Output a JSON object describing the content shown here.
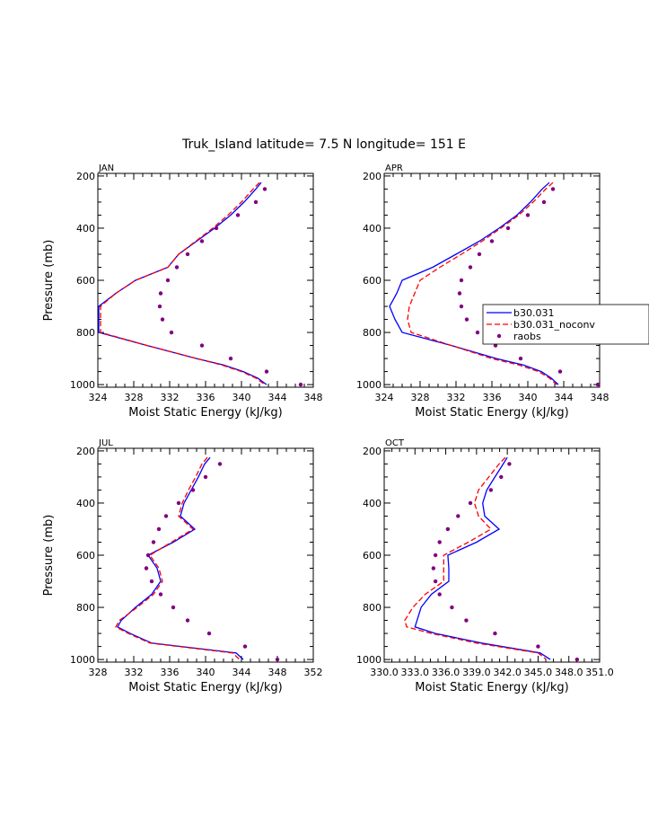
{
  "title": "Truk_Island  latitude= 7.5 N longitude= 151 E",
  "colors": {
    "model": "#0000ff",
    "noconv": "#ff0000",
    "raobs": "#800080"
  },
  "legend": {
    "panel": 1,
    "entries": [
      "b30.031",
      "b30.031_noconv",
      "raobs"
    ]
  },
  "chart_data": [
    {
      "type": "line",
      "label": "JAN",
      "xlabel": "Moist Static Energy (kJ/kg)",
      "ylabel": "Pressure (mb)",
      "xlim": [
        324,
        348
      ],
      "xticks": [
        324,
        328,
        332,
        336,
        340,
        344,
        348
      ],
      "xtick_labels": [
        "324",
        "328",
        "332",
        "336",
        "340",
        "344",
        "348"
      ],
      "ylim": [
        1010,
        190
      ],
      "yticks": [
        200,
        400,
        600,
        800,
        1000
      ],
      "ytick_labels": [
        "200",
        "400",
        "600",
        "800",
        "1000"
      ],
      "pressure": [
        225,
        250,
        300,
        350,
        400,
        450,
        500,
        550,
        600,
        650,
        700,
        750,
        800,
        850,
        900,
        925,
        950,
        975,
        1000
      ],
      "series": [
        {
          "name": "b30.031",
          "style": "solid",
          "values": [
            342.2,
            341.6,
            340.3,
            338.8,
            337.0,
            335.0,
            333.0,
            331.8,
            328.2,
            326.0,
            324.1,
            324.1,
            324.1,
            329.5,
            335.0,
            338.0,
            340.2,
            341.8,
            342.8
          ]
        },
        {
          "name": "b30.031_noconv",
          "style": "dashed",
          "values": [
            342.0,
            341.3,
            340.0,
            338.5,
            336.8,
            334.9,
            333.0,
            331.8,
            328.2,
            326.0,
            324.3,
            324.3,
            324.3,
            329.5,
            335.0,
            337.8,
            340.0,
            341.6,
            342.6
          ]
        },
        {
          "name": "raobs",
          "style": "dots",
          "points": [
            [
              342.6,
              250
            ],
            [
              341.6,
              300
            ],
            [
              339.6,
              350
            ],
            [
              337.2,
              400
            ],
            [
              335.6,
              450
            ],
            [
              334.0,
              500
            ],
            [
              332.8,
              550
            ],
            [
              331.8,
              600
            ],
            [
              331.0,
              650
            ],
            [
              330.9,
              700
            ],
            [
              331.2,
              750
            ],
            [
              332.2,
              800
            ],
            [
              335.6,
              850
            ],
            [
              338.8,
              900
            ],
            [
              342.8,
              950
            ],
            [
              346.6,
              1000
            ]
          ]
        }
      ]
    },
    {
      "type": "line",
      "label": "APR",
      "xlabel": "Moist Static Energy (kJ/kg)",
      "ylabel": "",
      "xlim": [
        324,
        348
      ],
      "xticks": [
        324,
        328,
        332,
        336,
        340,
        344,
        348
      ],
      "xtick_labels": [
        "324",
        "328",
        "332",
        "336",
        "340",
        "344",
        "348"
      ],
      "ylim": [
        1010,
        190
      ],
      "yticks": [
        200,
        400,
        600,
        800,
        1000
      ],
      "ytick_labels": [
        "200",
        "400",
        "600",
        "800",
        "1000"
      ],
      "pressure": [
        225,
        250,
        300,
        350,
        400,
        450,
        500,
        550,
        600,
        650,
        700,
        750,
        800,
        850,
        900,
        925,
        950,
        975,
        1000
      ],
      "series": [
        {
          "name": "b30.031",
          "style": "solid",
          "values": [
            342.4,
            341.6,
            340.3,
            338.8,
            336.8,
            334.6,
            332.0,
            329.4,
            326.0,
            325.4,
            324.6,
            325.2,
            326.0,
            331.5,
            336.5,
            339.5,
            341.5,
            342.6,
            343.4
          ]
        },
        {
          "name": "b30.031_noconv",
          "style": "dashed",
          "values": [
            342.8,
            342.0,
            340.6,
            339.0,
            337.0,
            334.9,
            332.6,
            330.2,
            328.0,
            327.4,
            326.8,
            326.6,
            327.0,
            331.5,
            336.0,
            339.0,
            341.2,
            342.4,
            343.2
          ]
        },
        {
          "name": "raobs",
          "style": "dots",
          "points": [
            [
              342.8,
              250
            ],
            [
              341.8,
              300
            ],
            [
              340.0,
              350
            ],
            [
              337.8,
              400
            ],
            [
              336.0,
              450
            ],
            [
              334.6,
              500
            ],
            [
              333.6,
              550
            ],
            [
              332.6,
              600
            ],
            [
              332.4,
              650
            ],
            [
              332.6,
              700
            ],
            [
              333.2,
              750
            ],
            [
              334.4,
              800
            ],
            [
              336.4,
              850
            ],
            [
              339.2,
              900
            ],
            [
              343.6,
              950
            ],
            [
              347.8,
              1000
            ]
          ]
        }
      ]
    },
    {
      "type": "line",
      "label": "JUL",
      "xlabel": "Moist Static Energy (kJ/kg)",
      "ylabel": "Pressure (mb)",
      "xlim": [
        328,
        352
      ],
      "xticks": [
        328,
        332,
        336,
        340,
        344,
        348,
        352
      ],
      "xtick_labels": [
        "328",
        "332",
        "336",
        "340",
        "344",
        "348",
        "352"
      ],
      "ylim": [
        1010,
        190
      ],
      "yticks": [
        200,
        400,
        600,
        800,
        1000
      ],
      "ytick_labels": [
        "200",
        "400",
        "600",
        "800",
        "1000"
      ],
      "pressure": [
        225,
        250,
        300,
        350,
        400,
        450,
        500,
        550,
        600,
        650,
        700,
        750,
        800,
        850,
        875,
        900,
        937,
        975,
        1000
      ],
      "series": [
        {
          "name": "b30.031",
          "style": "solid",
          "values": [
            340.5,
            339.9,
            339.2,
            338.4,
            337.6,
            337.2,
            338.8,
            336.4,
            333.6,
            334.6,
            335.0,
            334.0,
            332.2,
            330.6,
            330.2,
            331.6,
            334.0,
            343.4,
            344.2
          ]
        },
        {
          "name": "b30.031_noconv",
          "style": "dashed",
          "values": [
            340.2,
            339.6,
            338.9,
            338.1,
            337.4,
            337.0,
            338.6,
            336.2,
            333.8,
            334.8,
            335.2,
            334.2,
            332.4,
            330.4,
            330.0,
            331.4,
            333.8,
            343.0,
            343.8
          ]
        },
        {
          "name": "raobs",
          "style": "dots",
          "points": [
            [
              341.6,
              250
            ],
            [
              340.0,
              300
            ],
            [
              338.6,
              350
            ],
            [
              337.0,
              400
            ],
            [
              335.6,
              450
            ],
            [
              334.8,
              500
            ],
            [
              334.2,
              550
            ],
            [
              333.6,
              600
            ],
            [
              333.4,
              650
            ],
            [
              334.0,
              700
            ],
            [
              335.0,
              750
            ],
            [
              336.4,
              800
            ],
            [
              338.0,
              850
            ],
            [
              340.4,
              900
            ],
            [
              344.4,
              950
            ],
            [
              348.0,
              1000
            ]
          ]
        }
      ]
    },
    {
      "type": "line",
      "label": "OCT",
      "xlabel": "Moist Static Energy (kJ/kg)",
      "ylabel": "",
      "xlim": [
        330.0,
        351.0
      ],
      "xticks": [
        330.0,
        333.0,
        336.0,
        339.0,
        342.0,
        345.0,
        348.0,
        351.0
      ],
      "xtick_labels": [
        "330.0",
        "333.0",
        "336.0",
        "339.0",
        "342.0",
        "345.0",
        "348.0",
        "351.0"
      ],
      "ylim": [
        1010,
        190
      ],
      "yticks": [
        200,
        400,
        600,
        800,
        1000
      ],
      "ytick_labels": [
        "200",
        "400",
        "600",
        "800",
        "1000"
      ],
      "pressure": [
        225,
        250,
        300,
        350,
        400,
        450,
        500,
        550,
        600,
        650,
        700,
        750,
        800,
        850,
        875,
        900,
        937,
        975,
        1000
      ],
      "series": [
        {
          "name": "b30.031",
          "style": "solid",
          "values": [
            342.0,
            341.6,
            340.8,
            340.0,
            339.6,
            339.8,
            341.2,
            339.0,
            336.2,
            336.3,
            336.3,
            334.6,
            333.6,
            333.2,
            333.0,
            335.0,
            339.5,
            345.2,
            346.2
          ]
        },
        {
          "name": "b30.031_noconv",
          "style": "dashed",
          "values": [
            341.8,
            341.2,
            340.2,
            339.2,
            338.8,
            339.2,
            340.4,
            338.2,
            335.8,
            335.8,
            335.8,
            334.0,
            332.8,
            332.0,
            332.2,
            334.6,
            339.0,
            345.0,
            345.8
          ]
        },
        {
          "name": "raobs",
          "style": "dots",
          "points": [
            [
              342.2,
              250
            ],
            [
              341.4,
              300
            ],
            [
              340.4,
              350
            ],
            [
              338.4,
              400
            ],
            [
              337.2,
              450
            ],
            [
              336.2,
              500
            ],
            [
              335.4,
              550
            ],
            [
              335.0,
              600
            ],
            [
              334.8,
              650
            ],
            [
              335.0,
              700
            ],
            [
              335.4,
              750
            ],
            [
              336.6,
              800
            ],
            [
              338.0,
              850
            ],
            [
              340.8,
              900
            ],
            [
              345.0,
              950
            ],
            [
              348.8,
              1000
            ]
          ]
        }
      ]
    }
  ]
}
